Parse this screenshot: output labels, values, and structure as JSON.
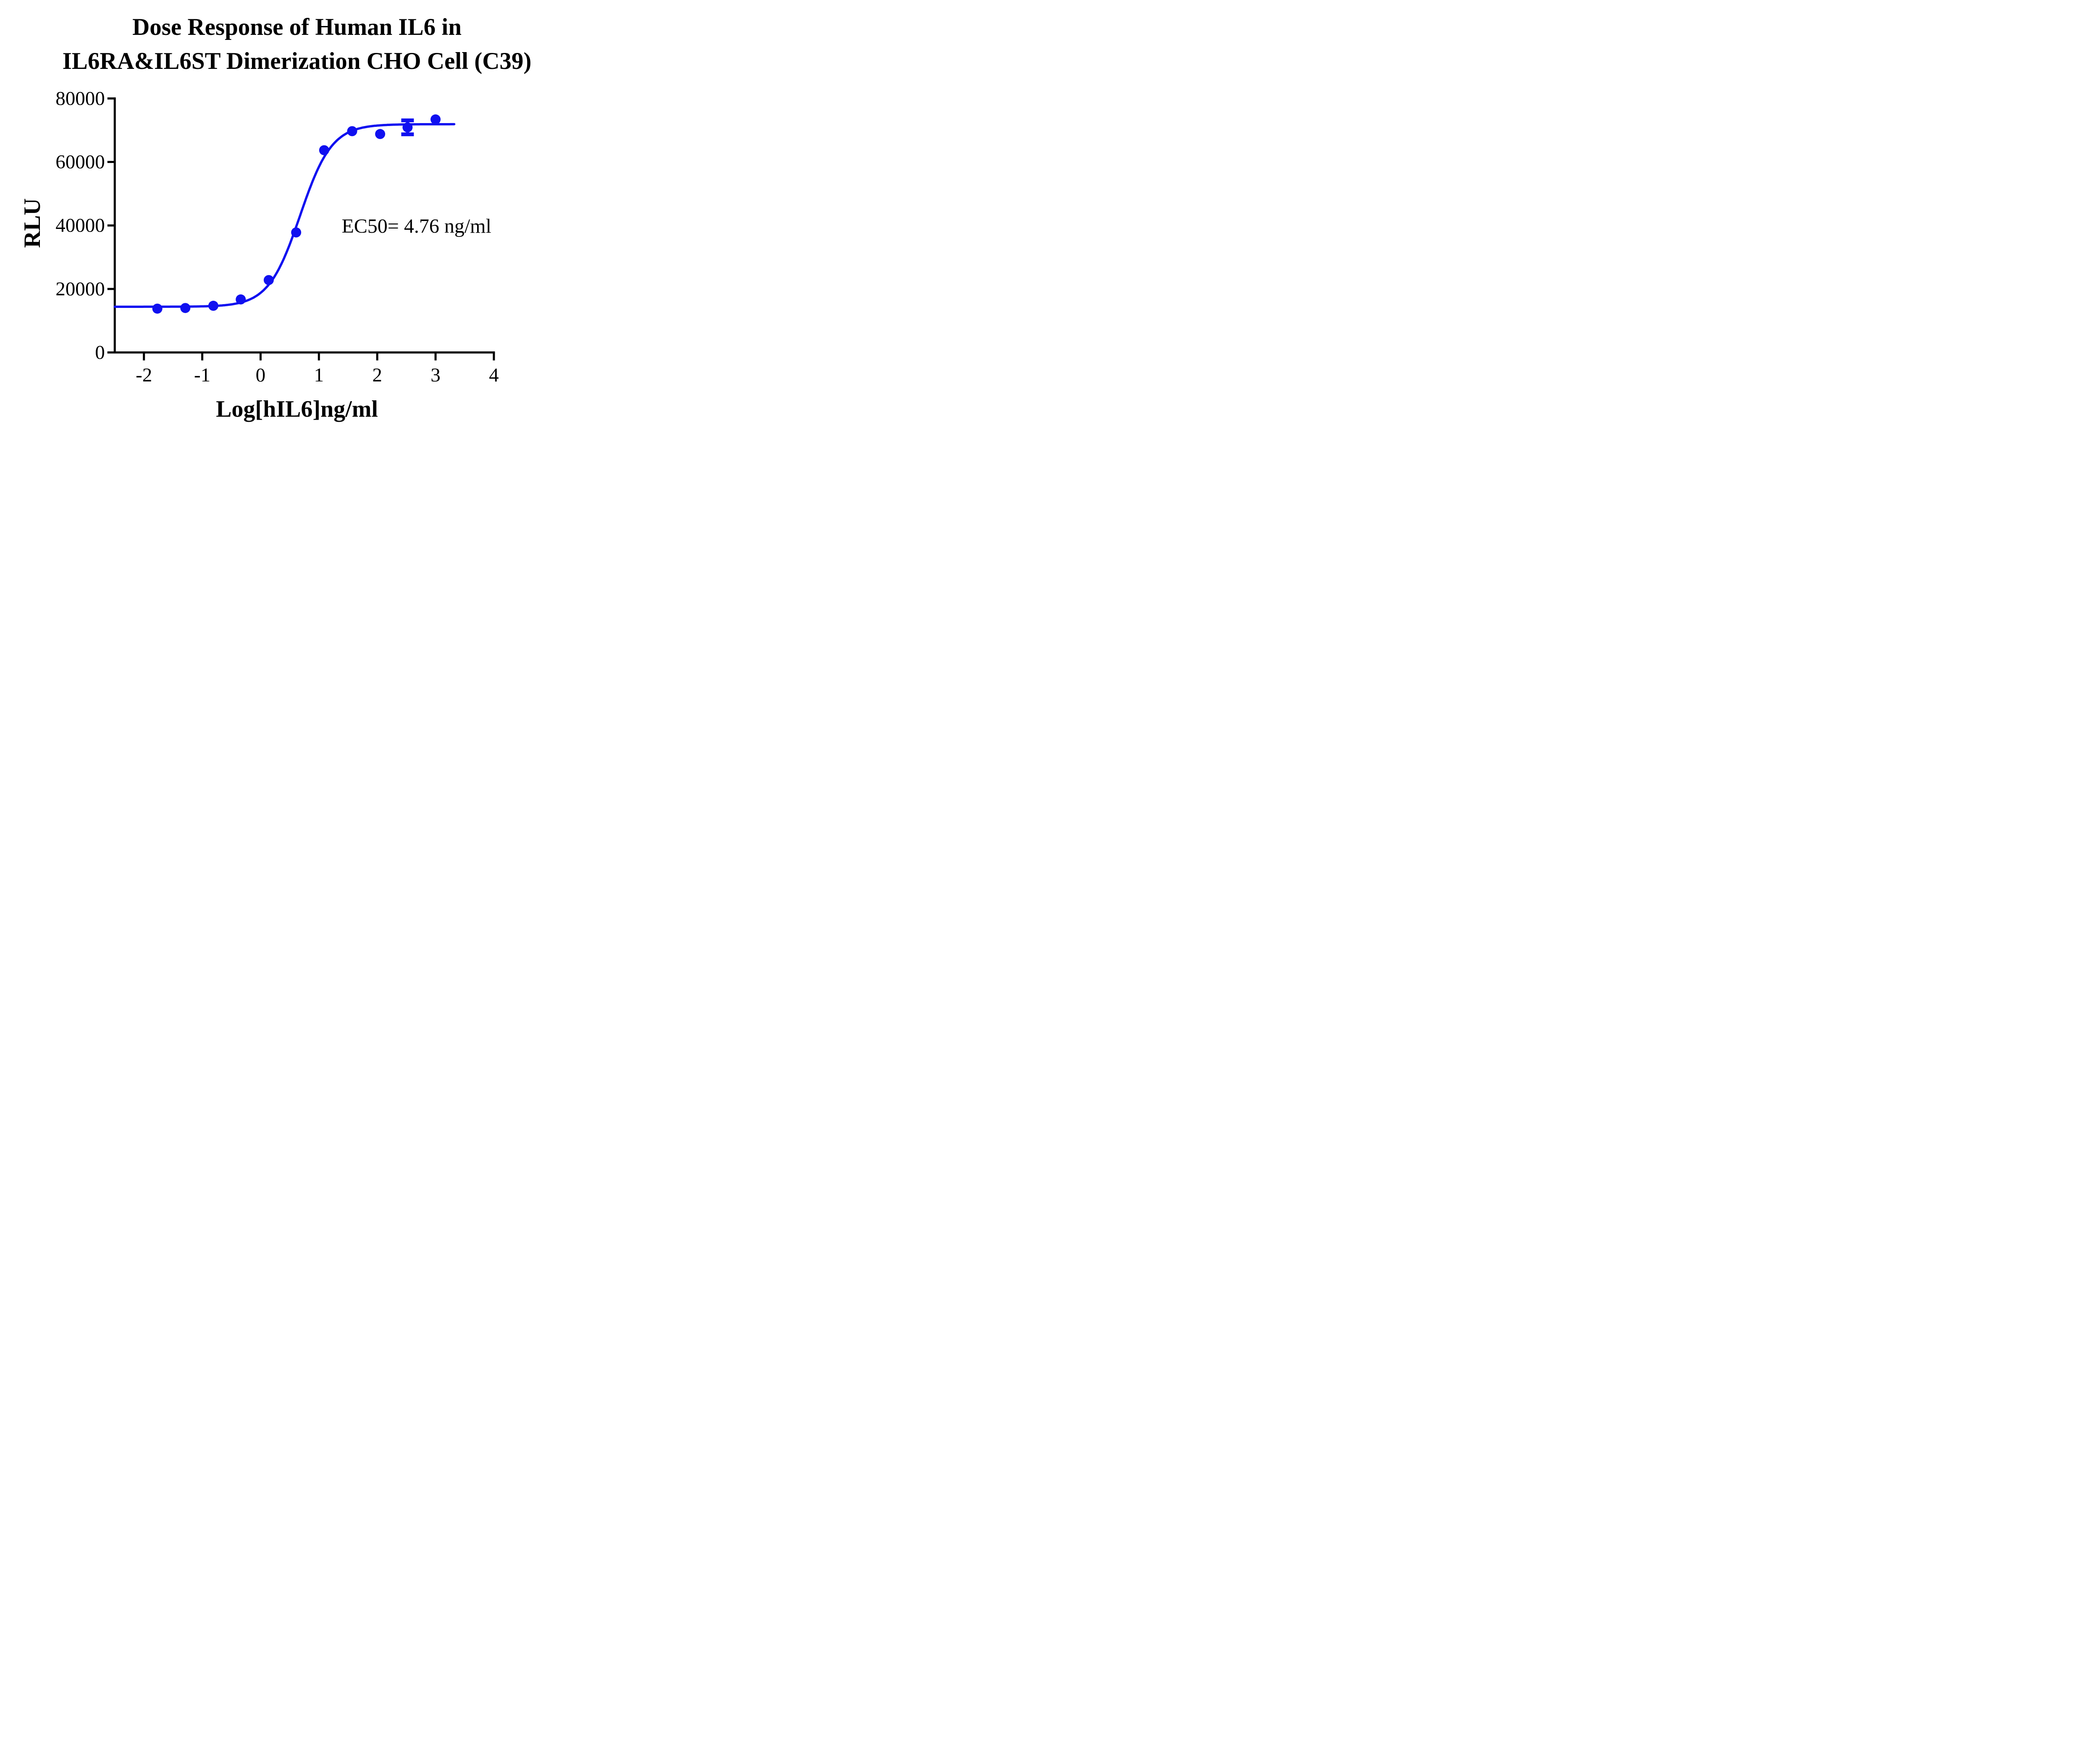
{
  "title": {
    "line1": "Dose Response of Human IL6 in",
    "line2": "IL6RA&IL6ST Dimerization CHO Cell (C39)"
  },
  "chart_data": {
    "type": "scatter",
    "title": "Dose Response of Human IL6 in IL6RA&IL6ST Dimerization CHO Cell (C39)",
    "xlabel": "Log[hIL6]ng/ml",
    "ylabel": "RLU",
    "xlim": [
      -2.5,
      4
    ],
    "ylim": [
      0,
      80000
    ],
    "x_ticks": [
      -2,
      -1,
      0,
      1,
      2,
      3,
      4
    ],
    "y_ticks": [
      0,
      20000,
      40000,
      60000,
      80000
    ],
    "grid": false,
    "legend": "none",
    "series": [
      {
        "name": "Human IL6",
        "color": "#1010F0",
        "marker": "circle",
        "x": [
          -1.77,
          -1.29,
          -0.81,
          -0.34,
          0.14,
          0.61,
          1.09,
          1.57,
          2.05,
          2.52,
          3.0
        ],
        "y": [
          13800,
          14000,
          14700,
          16700,
          22800,
          37800,
          63700,
          69700,
          68800,
          70900,
          73400
        ],
        "error_y": [
          0,
          0,
          0,
          0,
          0,
          0,
          0,
          0,
          0,
          2200,
          0
        ]
      }
    ],
    "fit_curve": {
      "model": "4PL-sigmoid",
      "bottom": 14400,
      "top": 71900,
      "log_ec50": 0.678,
      "hill": 1.6,
      "x_start": -2.5,
      "x_end": 3.33
    },
    "annotation": {
      "text": "EC50= 4.76 ng/ml",
      "x": 1.39,
      "y": 40200
    }
  }
}
